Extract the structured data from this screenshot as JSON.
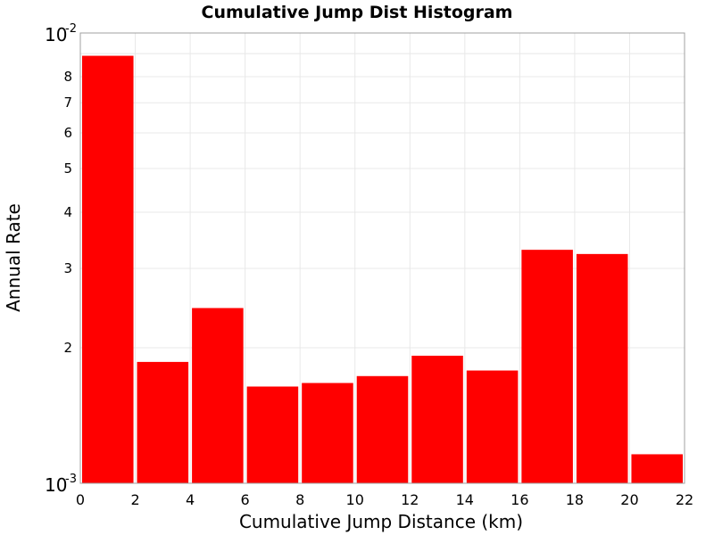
{
  "chart_data": {
    "type": "bar",
    "title": "Cumulative Jump Dist Histogram",
    "xlabel": "Cumulative Jump Distance (km)",
    "ylabel": "Annual Rate",
    "yscale": "log",
    "xlim": [
      0,
      22
    ],
    "ylim": [
      0.001,
      0.01
    ],
    "grid": true,
    "bar_color": "#ff0000",
    "x_ticks": [
      "0",
      "2",
      "4",
      "6",
      "8",
      "10",
      "12",
      "14",
      "16",
      "18",
      "20",
      "22"
    ],
    "x_tick_values": [
      0,
      2,
      4,
      6,
      8,
      10,
      12,
      14,
      16,
      18,
      20,
      22
    ],
    "y_major_ticks": [
      {
        "value": 0.001,
        "base": "10",
        "exp": "-3"
      },
      {
        "value": 0.01,
        "base": "10",
        "exp": "-2"
      }
    ],
    "y_minor_ticks": [
      {
        "value": 0.002,
        "label": "2"
      },
      {
        "value": 0.003,
        "label": "3"
      },
      {
        "value": 0.004,
        "label": "4"
      },
      {
        "value": 0.005,
        "label": "5"
      },
      {
        "value": 0.006,
        "label": "6"
      },
      {
        "value": 0.007,
        "label": "7"
      },
      {
        "value": 0.008,
        "label": "8"
      },
      {
        "value": 0.009,
        "label": ""
      }
    ],
    "bars": [
      {
        "x0": 0,
        "x1": 2,
        "value": 0.0089
      },
      {
        "x0": 2,
        "x1": 4,
        "value": 0.00186
      },
      {
        "x0": 4,
        "x1": 6,
        "value": 0.00245
      },
      {
        "x0": 6,
        "x1": 8,
        "value": 0.00164
      },
      {
        "x0": 8,
        "x1": 10,
        "value": 0.00167
      },
      {
        "x0": 10,
        "x1": 12,
        "value": 0.00173
      },
      {
        "x0": 12,
        "x1": 14,
        "value": 0.00192
      },
      {
        "x0": 14,
        "x1": 16,
        "value": 0.00178
      },
      {
        "x0": 16,
        "x1": 18,
        "value": 0.0033
      },
      {
        "x0": 18,
        "x1": 20,
        "value": 0.00323
      },
      {
        "x0": 20,
        "x1": 22,
        "value": 0.00116
      }
    ]
  }
}
